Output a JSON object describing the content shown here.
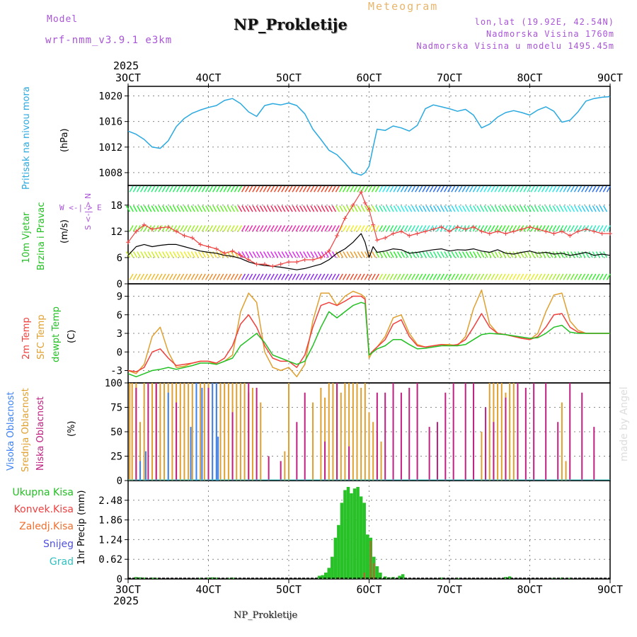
{
  "header": {
    "model_label": "Model",
    "model_name": "wrf-nmm_v3.9.1 e3km",
    "meteogram": "Meteogram",
    "station": "NP_Prokletije",
    "coords": "lon,lat (19.92E, 42.54N)",
    "elevation": "Nadmorska Visina 1760m",
    "model_elevation": "Nadmorska Visina u modelu 1495.45m",
    "year_top": "2025",
    "year_bottom": "2025",
    "footer_station": "NP_Prokletije",
    "watermark": "made by Angel"
  },
  "colors": {
    "pressure": "#2aa9e0",
    "temp2m": "#f0403c",
    "sfc": "#e0a030",
    "dew": "#22c022",
    "high": "#3b82f6",
    "mid": "#e0a030",
    "low": "#c02080",
    "precip": "#28c228",
    "conv": "#f04040",
    "snow": "#5050e0",
    "grad": "#30c0c0"
  },
  "chart_data": [
    {
      "type": "line",
      "panel": "pressure",
      "x_ticks": [
        "3OCT",
        "4OCT",
        "5OCT",
        "6OCT",
        "7OCT",
        "8OCT",
        "9OCT"
      ],
      "ylabel_left": "Pritisak na nivou mora",
      "unit": "(hPa)",
      "ylim": [
        1006,
        1021.5
      ],
      "y_ticks": [
        1008,
        1012,
        1016,
        1020
      ],
      "x": [
        3.0,
        3.1,
        3.2,
        3.3,
        3.4,
        3.5,
        3.6,
        3.7,
        3.8,
        3.9,
        4.0,
        4.1,
        4.2,
        4.3,
        4.4,
        4.5,
        4.6,
        4.7,
        4.8,
        4.9,
        5.0,
        5.1,
        5.2,
        5.3,
        5.4,
        5.5,
        5.6,
        5.7,
        5.8,
        5.9,
        5.95,
        6.0,
        6.05,
        6.1,
        6.2,
        6.3,
        6.4,
        6.5,
        6.6,
        6.7,
        6.8,
        6.9,
        7.0,
        7.1,
        7.2,
        7.3,
        7.4,
        7.5,
        7.6,
        7.7,
        7.8,
        7.9,
        8.0,
        8.1,
        8.2,
        8.3,
        8.4,
        8.5,
        8.6,
        8.7,
        8.8,
        8.9,
        9.0
      ],
      "values": [
        1014.5,
        1014.0,
        1013.2,
        1012.0,
        1011.8,
        1013.0,
        1015.2,
        1016.5,
        1017.3,
        1017.8,
        1018.2,
        1018.5,
        1019.3,
        1019.6,
        1018.8,
        1017.5,
        1016.8,
        1018.5,
        1018.8,
        1018.6,
        1018.9,
        1018.5,
        1017.2,
        1014.8,
        1013.2,
        1011.5,
        1010.8,
        1009.5,
        1008.0,
        1007.6,
        1008.0,
        1009.0,
        1012.0,
        1014.8,
        1014.6,
        1015.3,
        1015.0,
        1014.5,
        1015.4,
        1018.0,
        1018.6,
        1018.3,
        1018.0,
        1017.6,
        1017.9,
        1017.0,
        1015.0,
        1015.6,
        1016.7,
        1017.4,
        1017.7,
        1017.4,
        1017.0,
        1017.8,
        1018.3,
        1017.6,
        1015.9,
        1016.2,
        1017.5,
        1019.2,
        1019.6,
        1019.8,
        1019.9
      ],
      "series_name": "Pritisak na nivou mora"
    },
    {
      "type": "line",
      "panel": "wind",
      "ylabel_left_1": "10m Vjetar",
      "ylabel_left_2": "Brzina i Pravac",
      "unit": "(m/s)",
      "compass": "W <-|-> E",
      "compass_vertical": "S <-|-> N",
      "ylim": [
        0,
        22.5
      ],
      "y_ticks": [
        0,
        6,
        12,
        18
      ],
      "x": [
        3.0,
        3.1,
        3.2,
        3.3,
        3.4,
        3.5,
        3.6,
        3.7,
        3.8,
        3.9,
        4.0,
        4.1,
        4.2,
        4.3,
        4.4,
        4.5,
        4.6,
        4.7,
        4.8,
        4.9,
        5.0,
        5.1,
        5.2,
        5.3,
        5.4,
        5.5,
        5.6,
        5.7,
        5.8,
        5.9,
        5.95,
        6.0,
        6.05,
        6.1,
        6.2,
        6.3,
        6.4,
        6.5,
        6.6,
        6.7,
        6.8,
        6.9,
        7.0,
        7.1,
        7.2,
        7.3,
        7.4,
        7.5,
        7.6,
        7.7,
        7.8,
        7.9,
        8.0,
        8.1,
        8.2,
        8.3,
        8.4,
        8.5,
        8.6,
        8.7,
        8.8,
        8.9,
        9.0
      ],
      "speed": [
        6.5,
        8.5,
        9.0,
        8.5,
        8.8,
        9.0,
        9.0,
        8.5,
        8.0,
        7.5,
        7.2,
        7.0,
        6.5,
        6.3,
        5.8,
        5.0,
        4.5,
        4.2,
        4.0,
        3.8,
        3.5,
        3.2,
        3.5,
        4.0,
        4.5,
        5.5,
        7.0,
        8.0,
        9.5,
        11.5,
        9.5,
        6.0,
        8.5,
        7.2,
        7.5,
        8.0,
        7.8,
        7.0,
        7.2,
        7.5,
        7.8,
        8.0,
        7.5,
        7.8,
        7.7,
        8.0,
        7.5,
        7.2,
        7.8,
        7.0,
        6.8,
        7.2,
        7.5,
        7.0,
        7.2,
        6.8,
        7.0,
        6.5,
        6.8,
        7.2,
        6.5,
        6.8,
        6.5
      ],
      "gust": [
        9.5,
        12.0,
        13.5,
        12.5,
        12.8,
        13.0,
        12.0,
        11.0,
        10.5,
        9.0,
        8.5,
        8.0,
        7.0,
        7.5,
        6.5,
        5.5,
        4.5,
        4.5,
        4.0,
        4.5,
        5.0,
        5.0,
        5.5,
        5.5,
        6.0,
        7.5,
        11.0,
        15.0,
        18.0,
        21.0,
        18.5,
        17.0,
        13.5,
        10.0,
        10.5,
        11.5,
        12.0,
        11.0,
        11.5,
        12.0,
        12.5,
        13.0,
        12.0,
        13.0,
        12.5,
        13.0,
        12.0,
        11.5,
        12.0,
        11.5,
        12.0,
        12.5,
        13.0,
        12.5,
        12.0,
        11.5,
        12.0,
        11.0,
        12.0,
        12.5,
        12.0,
        11.5,
        11.5
      ],
      "series_names": [
        "Brzina vjetra",
        "Udari vjetra"
      ]
    },
    {
      "type": "line",
      "panel": "temperature",
      "ylabel_left_1": "2m Temp",
      "ylabel_left_2": "SFC Temp",
      "ylabel_left_3": "dewpt Temp",
      "unit": "(C)",
      "ylim": [
        -5,
        11
      ],
      "y_ticks": [
        -3,
        0,
        3,
        6,
        9
      ],
      "x": [
        3.0,
        3.1,
        3.2,
        3.3,
        3.4,
        3.5,
        3.6,
        3.7,
        3.8,
        3.9,
        4.0,
        4.1,
        4.2,
        4.3,
        4.4,
        4.5,
        4.6,
        4.7,
        4.8,
        4.9,
        5.0,
        5.1,
        5.2,
        5.3,
        5.4,
        5.5,
        5.6,
        5.7,
        5.8,
        5.9,
        5.95,
        6.0,
        6.05,
        6.1,
        6.2,
        6.3,
        6.4,
        6.5,
        6.6,
        6.7,
        6.8,
        6.9,
        7.0,
        7.1,
        7.2,
        7.3,
        7.4,
        7.5,
        7.6,
        7.7,
        7.8,
        7.9,
        8.0,
        8.1,
        8.2,
        8.3,
        8.4,
        8.5,
        8.6,
        8.7,
        8.8,
        8.9,
        9.0
      ],
      "temp2m": [
        -3.0,
        -3.2,
        -2.5,
        0.0,
        0.5,
        -1.0,
        -2.2,
        -2.0,
        -1.8,
        -1.5,
        -1.5,
        -1.8,
        -1.0,
        1.0,
        4.5,
        6.0,
        4.0,
        1.0,
        -1.0,
        -1.5,
        -1.5,
        -2.5,
        -0.5,
        4.0,
        7.5,
        8.0,
        7.5,
        8.2,
        9.0,
        9.0,
        8.5,
        -0.5,
        0.2,
        0.8,
        2.0,
        4.5,
        5.2,
        2.5,
        1.0,
        0.8,
        1.0,
        1.2,
        1.0,
        1.2,
        2.0,
        4.0,
        6.2,
        4.0,
        3.0,
        2.8,
        2.5,
        2.2,
        2.0,
        2.5,
        4.0,
        6.0,
        6.2,
        4.0,
        3.2,
        3.0,
        3.0,
        3.0,
        3.0
      ],
      "sfc": [
        -3.0,
        -3.5,
        -2.0,
        2.5,
        4.0,
        0.0,
        -2.5,
        -2.3,
        -1.8,
        -1.5,
        -1.5,
        -2.0,
        -1.5,
        -0.5,
        6.5,
        9.5,
        8.0,
        0.0,
        -2.5,
        -3.0,
        -2.5,
        -4.0,
        -2.0,
        5.0,
        9.5,
        9.5,
        7.5,
        9.0,
        9.8,
        9.3,
        8.8,
        -1.0,
        0.2,
        0.8,
        2.5,
        5.5,
        6.0,
        3.0,
        1.2,
        0.8,
        1.0,
        1.2,
        1.2,
        1.0,
        2.5,
        7.0,
        10.0,
        4.5,
        3.0,
        2.8,
        2.5,
        2.2,
        2.0,
        3.0,
        6.5,
        9.2,
        9.5,
        5.0,
        3.5,
        3.0,
        3.0,
        3.0,
        3.0
      ],
      "dew": [
        -3.5,
        -4.0,
        -3.5,
        -3.0,
        -2.8,
        -2.5,
        -2.8,
        -2.5,
        -2.2,
        -1.8,
        -1.8,
        -2.0,
        -1.5,
        -1.0,
        1.0,
        2.0,
        3.0,
        1.5,
        -0.5,
        -1.0,
        -1.5,
        -2.0,
        -1.5,
        1.0,
        4.0,
        6.5,
        5.5,
        6.5,
        7.5,
        8.0,
        7.8,
        -0.5,
        0.0,
        0.5,
        1.0,
        2.0,
        2.0,
        1.2,
        0.5,
        0.6,
        0.8,
        1.0,
        1.0,
        1.0,
        1.2,
        2.0,
        2.8,
        3.0,
        2.9,
        2.8,
        2.6,
        2.4,
        2.2,
        2.3,
        3.0,
        4.0,
        4.3,
        3.2,
        3.0,
        3.0,
        3.0,
        3.0,
        3.0
      ],
      "series_names": [
        "2m Temp",
        "SFC Temp",
        "dewpt Temp"
      ]
    },
    {
      "type": "bar",
      "panel": "cloud",
      "ylabel_left_1": "Visoka Oblacnost",
      "ylabel_left_2": "Srednja Oblacnost",
      "ylabel_left_3": "Niska Oblacnost",
      "unit": "(%)",
      "ylim": [
        0,
        100
      ],
      "y_ticks": [
        0,
        25,
        50,
        75,
        100
      ],
      "high_x": [
        3.15,
        3.22,
        3.5,
        3.78,
        3.85,
        3.92,
        4.05,
        4.1,
        4.12
      ],
      "high_values": [
        20,
        30,
        90,
        55,
        100,
        95,
        100,
        100,
        45
      ],
      "mid_x": [
        3.02,
        3.05,
        3.1,
        3.15,
        3.2,
        3.3,
        3.35,
        3.4,
        3.45,
        3.5,
        3.55,
        3.6,
        3.65,
        3.7,
        3.75,
        3.8,
        3.85,
        3.9,
        3.95,
        4.0,
        4.05,
        4.1,
        4.15,
        4.2,
        4.25,
        4.3,
        4.35,
        4.4,
        4.45,
        4.5,
        4.55,
        4.65,
        4.95,
        5.0,
        5.3,
        5.4,
        5.45,
        5.5,
        5.55,
        5.6,
        5.65,
        5.7,
        5.75,
        5.8,
        5.85,
        5.9,
        5.95,
        6.0,
        6.05,
        6.1,
        6.15,
        7.4,
        7.5,
        7.55,
        7.6,
        7.65,
        7.7,
        7.75,
        7.8,
        8.4,
        8.45
      ],
      "mid_values": [
        100,
        100,
        100,
        60,
        100,
        100,
        100,
        100,
        100,
        100,
        100,
        100,
        100,
        100,
        100,
        100,
        100,
        100,
        100,
        100,
        100,
        100,
        100,
        100,
        100,
        100,
        100,
        100,
        100,
        90,
        95,
        80,
        30,
        100,
        80,
        95,
        85,
        100,
        100,
        100,
        90,
        100,
        100,
        100,
        100,
        95,
        100,
        70,
        60,
        50,
        40,
        50,
        100,
        100,
        100,
        100,
        90,
        100,
        100,
        80,
        20
      ],
      "low_x": [
        3.1,
        3.25,
        3.35,
        3.6,
        4.0,
        4.3,
        4.5,
        4.6,
        4.75,
        4.9,
        5.1,
        5.2,
        5.45,
        5.6,
        5.75,
        6.1,
        6.2,
        6.3,
        6.4,
        6.5,
        6.6,
        6.75,
        6.85,
        6.95,
        7.05,
        7.2,
        7.3,
        7.45,
        7.55,
        7.7,
        7.85,
        7.95,
        8.05,
        8.2,
        8.35,
        8.5,
        8.65,
        8.8
      ],
      "low_values": [
        95,
        100,
        100,
        80,
        95,
        70,
        100,
        95,
        25,
        20,
        60,
        90,
        40,
        100,
        35,
        90,
        90,
        100,
        90,
        95,
        100,
        55,
        60,
        90,
        100,
        100,
        100,
        75,
        60,
        85,
        100,
        95,
        100,
        100,
        60,
        100,
        90,
        55
      ],
      "series_names": [
        "Visoka Oblacnost",
        "Srednja Oblacnost",
        "Niska Oblacnost"
      ]
    },
    {
      "type": "bar",
      "panel": "precipitation",
      "ylabel_left": "1hr Precip",
      "unit": "(mm)",
      "legend": [
        "Ukupna Kisa",
        "Konvek.Kisa",
        "Zaledj.Kisa",
        "Snijeg",
        "Grad"
      ],
      "ylim": [
        0,
        3.1
      ],
      "y_ticks": [
        0,
        0.62,
        1.24,
        1.86,
        2.48
      ],
      "y_tick_labels": [
        "0",
        "0.62",
        "1.24",
        "1.86",
        "2.48"
      ],
      "total_x": [
        3.1,
        3.15,
        3.2,
        3.3,
        3.35,
        3.9,
        4.0,
        4.05,
        4.1,
        4.25,
        4.3,
        5.38,
        5.42,
        5.46,
        5.5,
        5.54,
        5.58,
        5.62,
        5.66,
        5.7,
        5.74,
        5.78,
        5.82,
        5.86,
        5.9,
        5.94,
        5.98,
        6.02,
        6.06,
        6.1,
        6.14,
        6.2,
        6.25,
        6.3,
        6.38,
        6.42,
        6.9,
        7.1,
        7.7,
        7.75,
        8.3,
        8.4,
        8.5
      ],
      "total_values": [
        0.06,
        0.05,
        0.04,
        0.04,
        0.03,
        0.03,
        0.04,
        0.05,
        0.04,
        0.03,
        0.04,
        0.1,
        0.12,
        0.2,
        0.35,
        0.7,
        1.3,
        1.7,
        2.4,
        2.8,
        2.9,
        2.7,
        2.85,
        2.9,
        2.6,
        2.4,
        1.4,
        1.3,
        0.7,
        0.4,
        0.2,
        0.08,
        0.05,
        0.06,
        0.1,
        0.15,
        0.04,
        0.03,
        0.06,
        0.08,
        0.03,
        0.04,
        0.03
      ],
      "conv_x": [
        5.62,
        5.66,
        5.94,
        6.02,
        6.06
      ],
      "conv_values": [
        0.05,
        0.04,
        0.2,
        1.2,
        0.5
      ],
      "series_names": [
        "Ukupna Kisa",
        "Konvek.Kisa"
      ]
    }
  ]
}
